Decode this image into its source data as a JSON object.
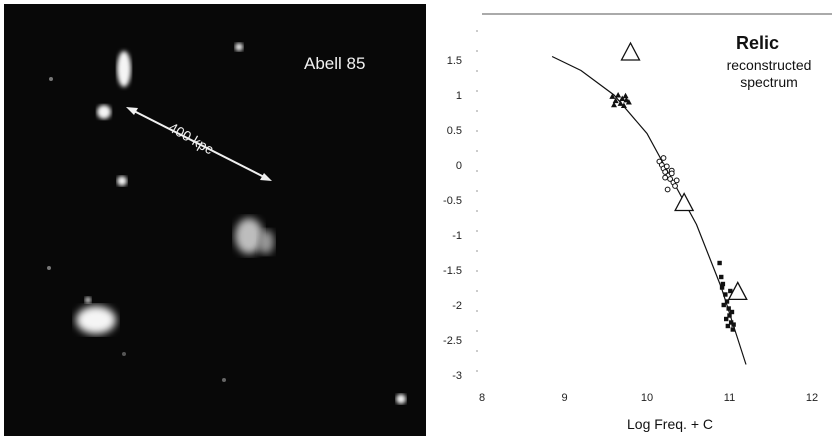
{
  "left_panel": {
    "cluster_name": "Abell 85",
    "scale_label": "400 kpc"
  },
  "chart_data": {
    "type": "scatter",
    "title": "Relic",
    "subtitle": "reconstructed spectrum",
    "xlabel": "Log Freq. + C",
    "ylabel": "",
    "xlim": [
      8,
      12
    ],
    "ylim": [
      -3,
      1.7
    ],
    "x_ticks": [
      "8",
      "9",
      "10",
      "11",
      "12"
    ],
    "y_ticks": [
      "1.5",
      "1",
      "0.5",
      "0",
      "-0.5",
      "-1",
      "-1.5",
      "-2",
      "-2.5",
      "-3"
    ],
    "series": [
      {
        "marker": "triangle",
        "points": [
          [
            9.58,
            0.98
          ],
          [
            9.62,
            0.92
          ],
          [
            9.65,
            1.0
          ],
          [
            9.68,
            0.88
          ],
          [
            9.7,
            0.95
          ],
          [
            9.72,
            0.85
          ],
          [
            9.75,
            0.93
          ],
          [
            9.78,
            0.9
          ],
          [
            9.6,
            0.86
          ],
          [
            9.74,
            0.99
          ]
        ]
      },
      {
        "marker": "circle",
        "points": [
          [
            10.15,
            0.05
          ],
          [
            10.18,
            0.0
          ],
          [
            10.2,
            -0.05
          ],
          [
            10.22,
            -0.1
          ],
          [
            10.24,
            -0.02
          ],
          [
            10.26,
            -0.15
          ],
          [
            10.28,
            -0.2
          ],
          [
            10.3,
            -0.08
          ],
          [
            10.32,
            -0.25
          ],
          [
            10.34,
            -0.3
          ],
          [
            10.2,
            0.1
          ],
          [
            10.25,
            -0.35
          ],
          [
            10.3,
            -0.12
          ],
          [
            10.22,
            -0.18
          ],
          [
            10.36,
            -0.22
          ]
        ]
      },
      {
        "marker": "square",
        "points": [
          [
            10.88,
            -1.4
          ],
          [
            10.9,
            -1.6
          ],
          [
            10.92,
            -1.7
          ],
          [
            10.95,
            -1.85
          ],
          [
            10.97,
            -1.95
          ],
          [
            10.99,
            -2.05
          ],
          [
            11.0,
            -2.15
          ],
          [
            11.02,
            -2.25
          ],
          [
            11.04,
            -2.35
          ],
          [
            10.93,
            -2.0
          ],
          [
            10.96,
            -2.2
          ],
          [
            10.98,
            -2.3
          ],
          [
            11.01,
            -1.8
          ],
          [
            11.03,
            -2.1
          ],
          [
            11.05,
            -2.28
          ],
          [
            10.91,
            -1.75
          ]
        ]
      },
      {
        "marker": "open-triangle-large",
        "points": [
          [
            9.8,
            1.6
          ],
          [
            10.45,
            -0.55
          ],
          [
            11.1,
            -1.82
          ]
        ]
      }
    ],
    "fit_curve": [
      [
        8.85,
        1.55
      ],
      [
        9.2,
        1.35
      ],
      [
        9.6,
        1.0
      ],
      [
        10.0,
        0.45
      ],
      [
        10.3,
        -0.2
      ],
      [
        10.6,
        -0.85
      ],
      [
        10.9,
        -1.75
      ],
      [
        11.05,
        -2.3
      ],
      [
        11.2,
        -2.85
      ]
    ]
  }
}
